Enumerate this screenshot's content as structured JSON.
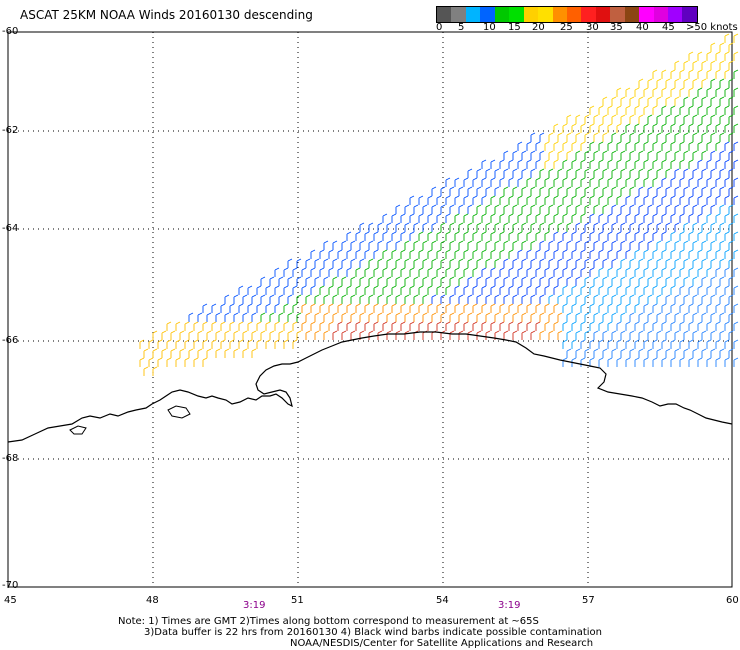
{
  "title": "ASCAT 25KM NOAA Winds 20160130 descending",
  "legend": {
    "colors": [
      "#555555",
      "#808080",
      "#00b4ff",
      "#0064ff",
      "#00c800",
      "#00e000",
      "#ffd000",
      "#ffe000",
      "#ff9000",
      "#ff6000",
      "#ff2020",
      "#e01010",
      "#c06040",
      "#8b4513",
      "#ff00ff",
      "#e000e0",
      "#a000ff",
      "#6000c0"
    ],
    "labels": [
      "0",
      "5",
      "10",
      "15",
      "20",
      "25",
      "30",
      "35",
      "40",
      "45",
      ">50 knots"
    ]
  },
  "axes": {
    "y_labels": [
      "-60",
      "-62",
      "-64",
      "-66",
      "-68",
      "-70"
    ],
    "x_labels": [
      "45",
      "48",
      "51",
      "54",
      "57",
      "60"
    ]
  },
  "time_labels": [
    "3:19",
    "3:19"
  ],
  "notes": {
    "line1": "Note: 1) Times are GMT 2)Times along bottom correspond to measurement at ~65S",
    "line2": "3)Data buffer is 22 hrs from 20160130 4) Black wind barbs indicate possible contamination",
    "line3": "NOAA/NESDIS/Center for Satellite Applications and Research"
  }
}
